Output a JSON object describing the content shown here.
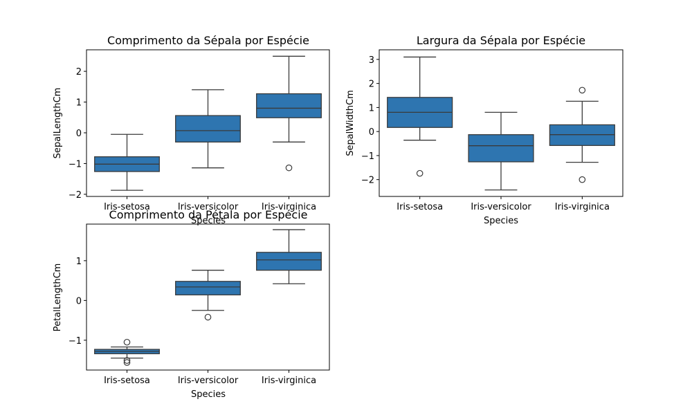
{
  "colors": {
    "box_fill": "#2e75b0",
    "line": "#3a3a3a",
    "frame": "#000000"
  },
  "chart_data": [
    {
      "type": "box",
      "title": "Comprimento da Sépala por Espécie",
      "xlabel": "Species",
      "ylabel": "SepalLengthCm",
      "categories": [
        "Iris-setosa",
        "Iris-versicolor",
        "Iris-virginica"
      ],
      "ylim": [
        -2.07,
        2.7
      ],
      "yticks": [
        -2,
        -1,
        0,
        1,
        2
      ],
      "boxes": [
        {
          "whisker_low": -1.87,
          "q1": -1.26,
          "median": -1.02,
          "q3": -0.78,
          "whisker_high": -0.05,
          "outliers": []
        },
        {
          "whisker_low": -1.14,
          "q1": -0.3,
          "median": 0.07,
          "q3": 0.56,
          "whisker_high": 1.4,
          "outliers": []
        },
        {
          "whisker_low": -0.3,
          "q1": 0.49,
          "median": 0.8,
          "q3": 1.27,
          "whisker_high": 2.49,
          "outliers": [
            -1.14
          ]
        }
      ]
    },
    {
      "type": "box",
      "title": "Largura da Sépala por Espécie",
      "xlabel": "Species",
      "ylabel": "SepalWidthCm",
      "categories": [
        "Iris-setosa",
        "Iris-versicolor",
        "Iris-virginica"
      ],
      "ylim": [
        -2.7,
        3.4
      ],
      "yticks": [
        -2,
        -1,
        0,
        1,
        2,
        3
      ],
      "boxes": [
        {
          "whisker_low": -0.36,
          "q1": 0.17,
          "median": 0.8,
          "q3": 1.42,
          "whisker_high": 3.1,
          "outliers": [
            -1.74
          ]
        },
        {
          "whisker_low": -2.43,
          "q1": -1.26,
          "median": -0.59,
          "q3": -0.13,
          "whisker_high": 0.8,
          "outliers": []
        },
        {
          "whisker_low": -1.28,
          "q1": -0.58,
          "median": -0.13,
          "q3": 0.28,
          "whisker_high": 1.26,
          "outliers": [
            1.72,
            -2.0
          ]
        }
      ]
    },
    {
      "type": "box",
      "title": "Comprimento da Pétala por Espécie",
      "xlabel": "Species",
      "ylabel": "PetalLengthCm",
      "categories": [
        "Iris-setosa",
        "Iris-versicolor",
        "Iris-virginica"
      ],
      "ylim": [
        -1.75,
        1.92
      ],
      "yticks": [
        -1,
        0,
        1
      ],
      "boxes": [
        {
          "whisker_low": -1.45,
          "q1": -1.34,
          "median": -1.28,
          "q3": -1.23,
          "whisker_high": -1.17,
          "outliers": [
            -1.05,
            -1.51,
            -1.56
          ]
        },
        {
          "whisker_low": -0.25,
          "q1": 0.14,
          "median": 0.34,
          "q3": 0.48,
          "whisker_high": 0.76,
          "outliers": [
            -0.42
          ]
        },
        {
          "whisker_low": 0.42,
          "q1": 0.76,
          "median": 1.02,
          "q3": 1.21,
          "whisker_high": 1.78,
          "outliers": []
        }
      ]
    }
  ]
}
